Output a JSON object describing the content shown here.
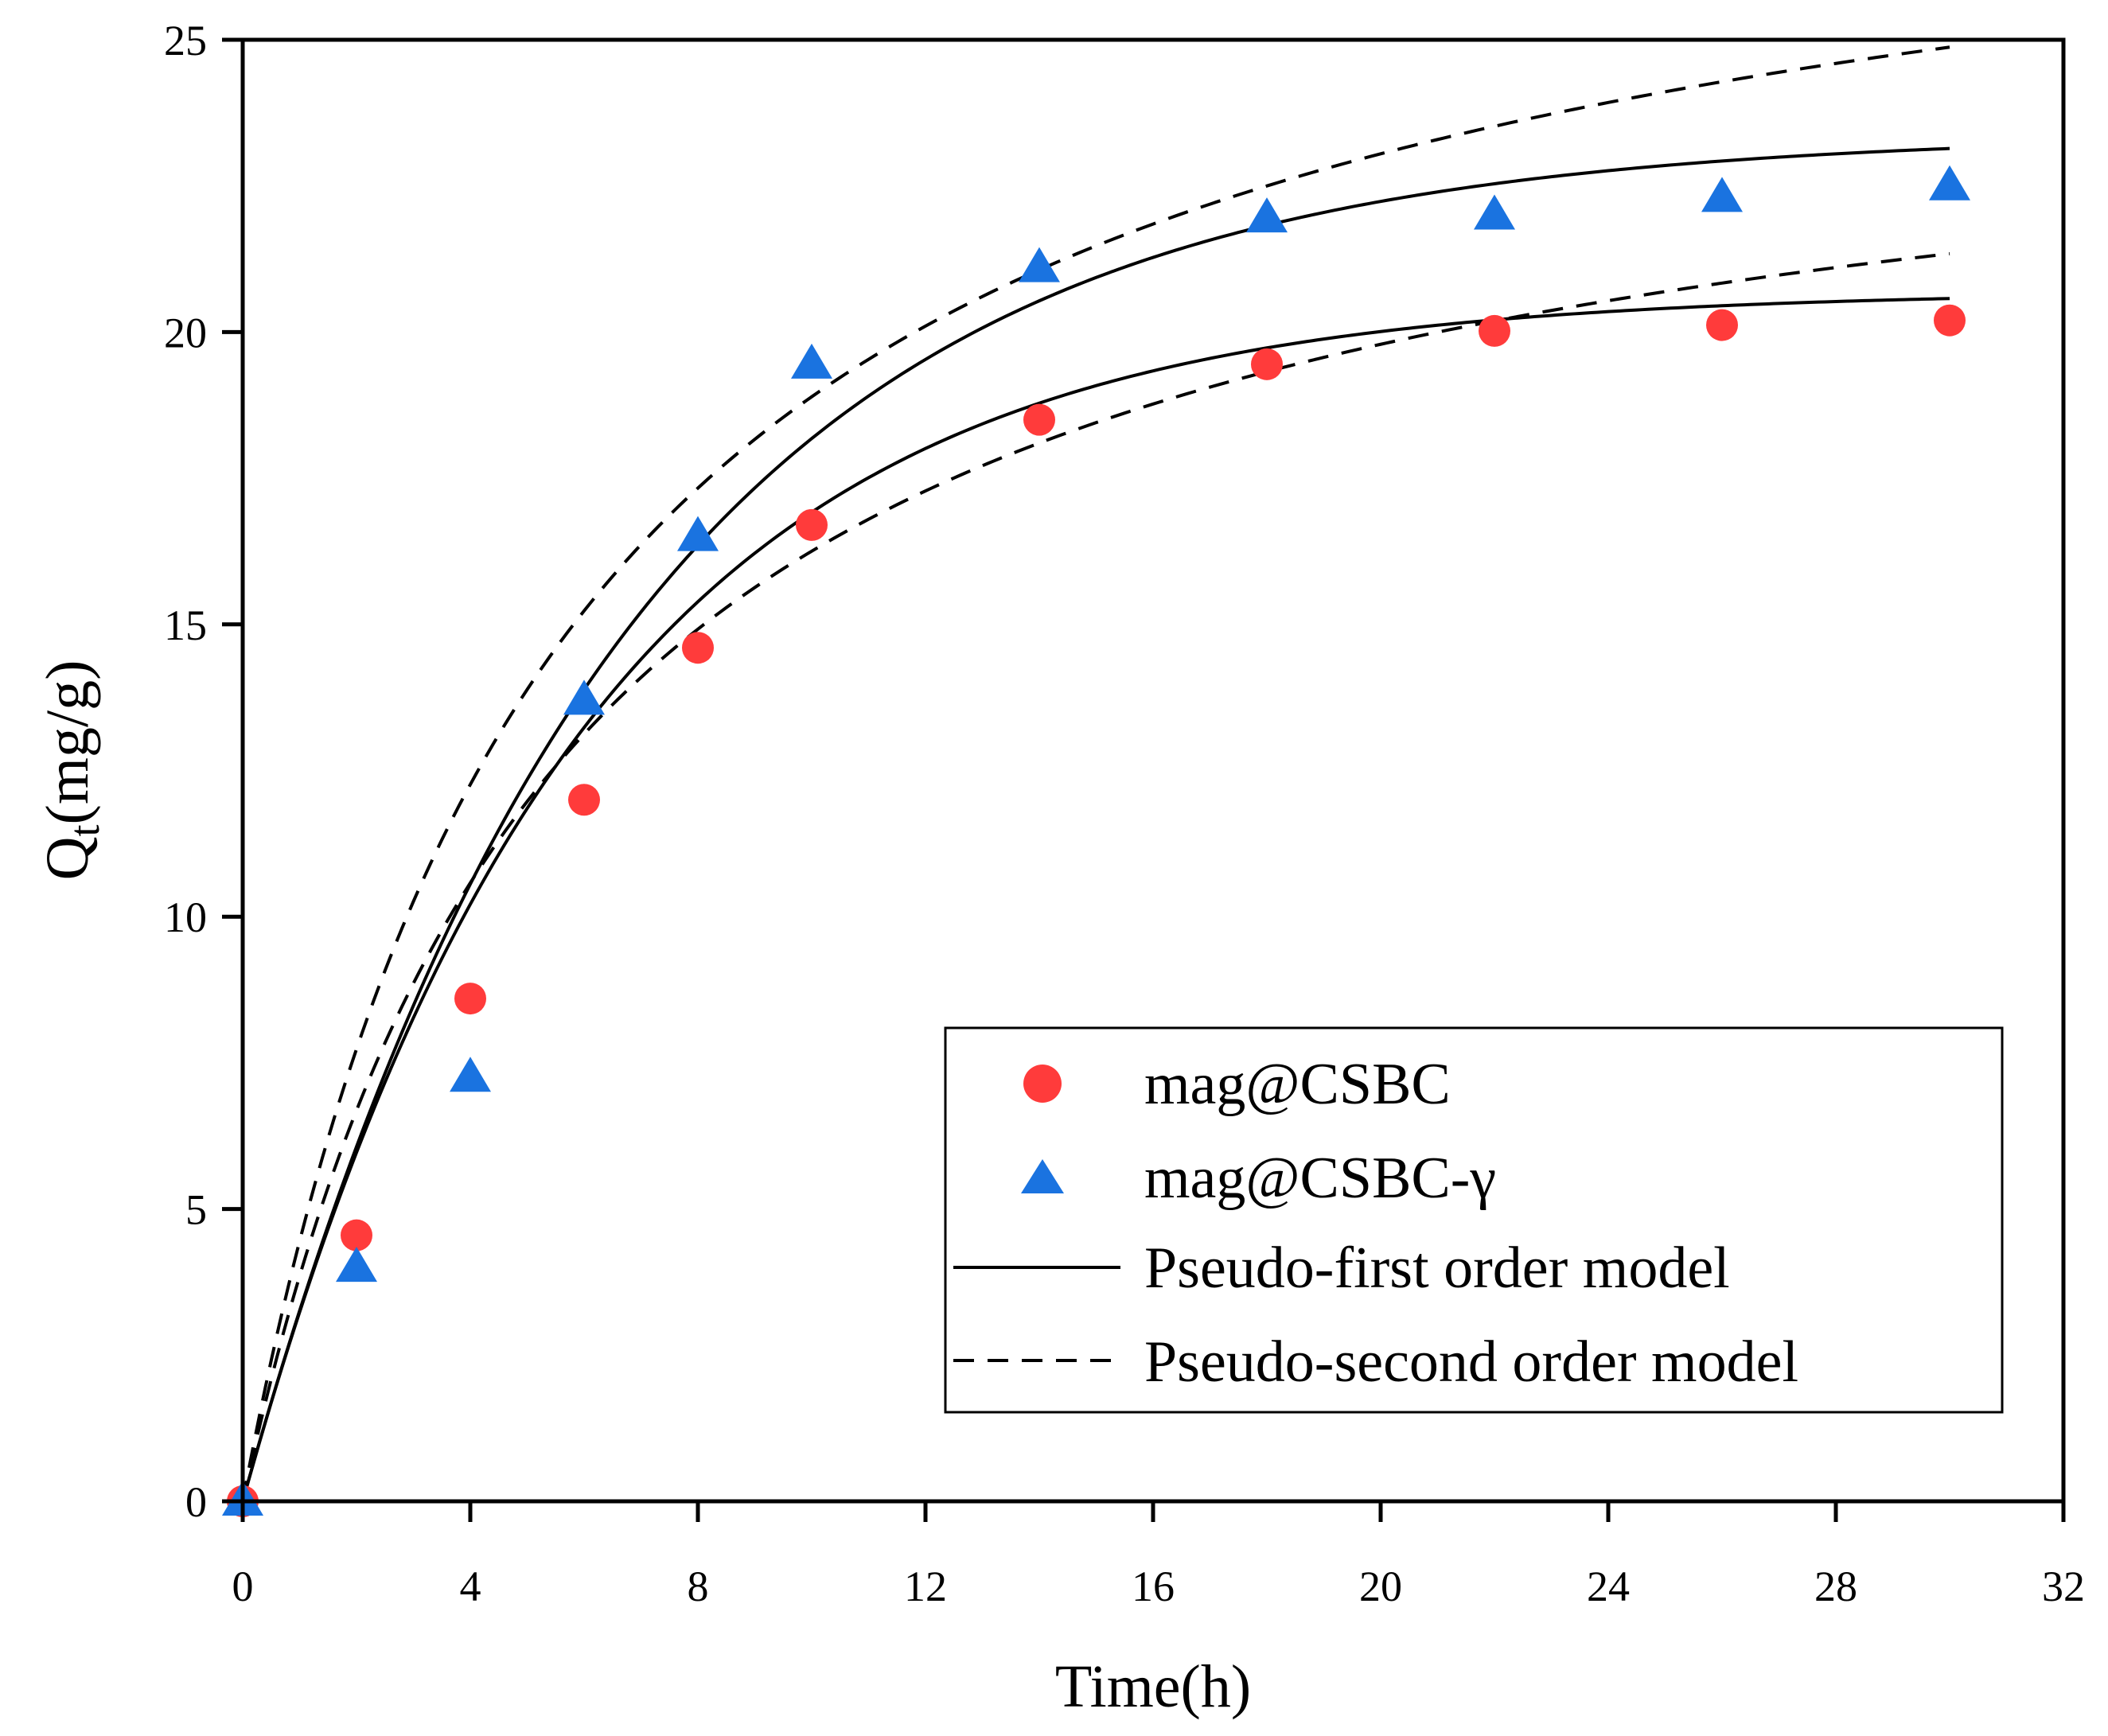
{
  "chart_data": {
    "type": "scatter",
    "title": "",
    "xlabel": "Time(h)",
    "ylabel_main": "Q",
    "ylabel_sub": "t",
    "ylabel_unit": "(mg/g)",
    "xlim": [
      0,
      32
    ],
    "ylim": [
      0,
      25
    ],
    "x_ticks": [
      0,
      4,
      8,
      12,
      16,
      20,
      24,
      28,
      32
    ],
    "y_ticks": [
      0,
      5,
      10,
      15,
      20,
      25
    ],
    "grid": false,
    "legend_position": "bottom-right",
    "series": [
      {
        "name": "mag@CSBC",
        "marker": "circle",
        "color": "#ff3b3b",
        "x": [
          0,
          2,
          4,
          6,
          8,
          10,
          14,
          18,
          22,
          26,
          30
        ],
        "y": [
          0,
          4.55,
          8.6,
          12.0,
          14.6,
          16.7,
          18.5,
          19.45,
          20.02,
          20.12,
          20.2
        ]
      },
      {
        "name": "mag@CSBC-γ",
        "marker": "triangle",
        "color": "#1a73e0",
        "x": [
          0,
          2,
          4,
          6,
          8,
          10,
          14,
          18,
          22,
          26,
          30
        ],
        "y": [
          0,
          4.0,
          7.25,
          13.7,
          16.5,
          19.45,
          21.1,
          21.95,
          22.0,
          22.3,
          22.5
        ]
      }
    ],
    "models": [
      {
        "name": "Pseudo-first order model",
        "style": "solid",
        "fits": [
          {
            "for": "mag@CSBC",
            "type": "pfo",
            "qe": 20.7,
            "k": 0.17
          },
          {
            "for": "mag@CSBC-γ",
            "type": "pfo",
            "qe": 23.4,
            "k": 0.15
          }
        ]
      },
      {
        "name": "Pseudo-second order model",
        "style": "dashed",
        "fits": [
          {
            "for": "mag@CSBC",
            "type": "pso",
            "qe": 25.3,
            "k": 0.0071
          },
          {
            "for": "mag@CSBC-γ",
            "type": "pso",
            "qe": 29.55,
            "k": 0.006
          }
        ]
      }
    ],
    "legend": [
      {
        "label": "mag@CSBC",
        "kind": "circle"
      },
      {
        "label": "mag@CSBC-γ",
        "kind": "triangle"
      },
      {
        "label": "Pseudo-first order model",
        "kind": "solid"
      },
      {
        "label": "Pseudo-second order model",
        "kind": "dashed"
      }
    ]
  }
}
